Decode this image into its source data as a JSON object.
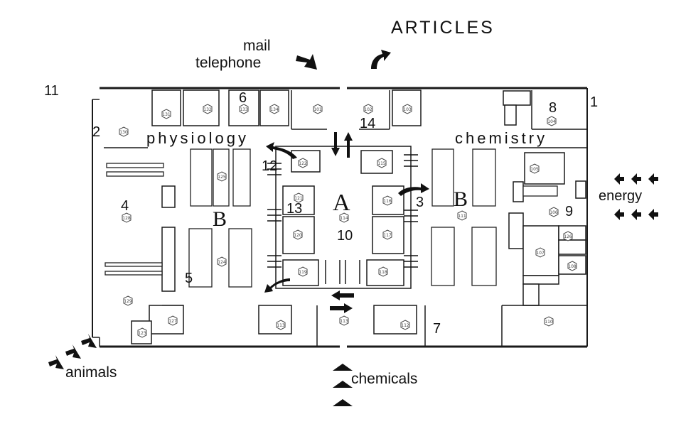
{
  "labels": {
    "articles": "ARTICLES",
    "mail": "mail",
    "telephone": "telephone",
    "physiology": "physiology",
    "chemistry": "chemistry",
    "energy": "energy",
    "animals": "animals",
    "chemicals": "chemicals",
    "zone_a": "A",
    "zone_b_left": "B",
    "zone_b_right": "B"
  },
  "markers": [
    "1",
    "2",
    "3",
    "4",
    "5",
    "6",
    "7",
    "8",
    "9",
    "10",
    "11",
    "12",
    "13",
    "14"
  ],
  "rooms": {
    "r131": "131",
    "r132": "132",
    "r133": "133",
    "r134": "134",
    "r101": "101",
    "r102": "102",
    "r103": "103",
    "r104": "104",
    "r130": "130",
    "r128": "128",
    "r125": "125",
    "r122": "122",
    "r115": "115",
    "r121": "121",
    "r114": "114",
    "r116": "116",
    "r120": "120",
    "r117": "117",
    "r119": "119",
    "r118": "118",
    "r124": "124",
    "r111": "111",
    "r105": "105",
    "r106": "106",
    "r126": "126",
    "r107": "107",
    "r108": "108",
    "r129": "129",
    "r127": "127",
    "r123": "123",
    "r113": "113",
    "r112": "112",
    "r110": "110"
  }
}
